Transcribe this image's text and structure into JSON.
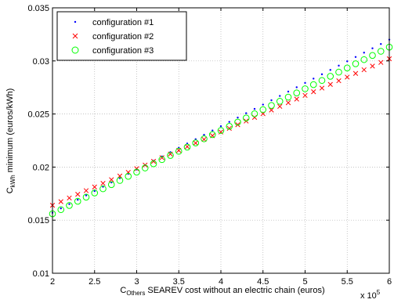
{
  "chart_data": {
    "type": "scatter",
    "title": "",
    "xlabel": {
      "main": "C",
      "sub": "Others",
      "rest": " SEAREV cost without an electric chain (euros)"
    },
    "ylabel": {
      "main": "C",
      "sub": "kWh",
      "rest": " minimum (euros/kWh)"
    },
    "x_multiplier": "x 10",
    "x_multiplier_exp": "5",
    "xlim": [
      2,
      6
    ],
    "ylim": [
      0.01,
      0.035
    ],
    "x_ticks": [
      "2",
      "2.5",
      "3",
      "3.5",
      "4",
      "4.5",
      "5",
      "5.5",
      "6"
    ],
    "y_ticks": [
      "0.01",
      "0.015",
      "0.02",
      "0.025",
      "0.03",
      "0.035"
    ],
    "grid": true,
    "legend_position": "top-left",
    "series": [
      {
        "name": "configuration #1",
        "marker": "dot",
        "color": "#0000ff",
        "x_start": 2,
        "x_end": 6,
        "count": 41,
        "y_start": 0.0157,
        "y_end": 0.032
      },
      {
        "name": "configuration #2",
        "marker": "x",
        "color": "#ff0000",
        "x_start": 2,
        "x_end": 6,
        "count": 41,
        "y_start": 0.0164,
        "y_end": 0.0302
      },
      {
        "name": "configuration #3",
        "marker": "circle",
        "color": "#00ff00",
        "x_start": 2,
        "x_end": 6,
        "count": 41,
        "y_start": 0.0156,
        "y_end": 0.0313
      }
    ]
  }
}
